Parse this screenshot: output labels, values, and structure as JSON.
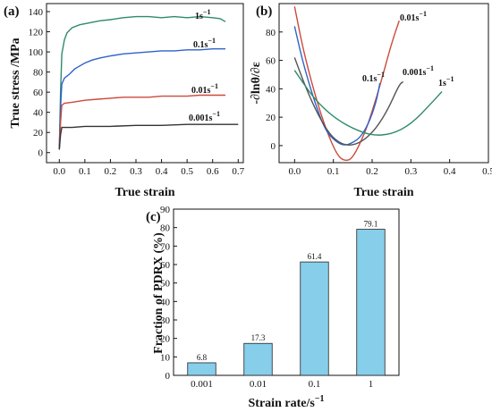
{
  "chart_data": [
    {
      "panel": "(a)",
      "type": "line",
      "xlabel": "True strain",
      "ylabel": "True stress /MPa",
      "xlim": [
        -0.05,
        0.72
      ],
      "ylim": [
        -10,
        148
      ],
      "xticks": [
        "0.0",
        "0.1",
        "0.2",
        "0.3",
        "0.4",
        "0.5",
        "0.6",
        "0.7"
      ],
      "yticks": [
        "0",
        "20",
        "40",
        "60",
        "80",
        "100",
        "120",
        "140"
      ],
      "grid": false,
      "series": [
        {
          "name": "1s",
          "color": "#2e8b6a",
          "x": [
            0,
            0.005,
            0.01,
            0.02,
            0.03,
            0.05,
            0.08,
            0.12,
            0.16,
            0.2,
            0.25,
            0.3,
            0.35,
            0.4,
            0.45,
            0.5,
            0.55,
            0.6,
            0.63,
            0.65
          ],
          "y": [
            5,
            60,
            98,
            112,
            119,
            124,
            127,
            129,
            131,
            132,
            134,
            135,
            135,
            134,
            135,
            134,
            135,
            134,
            133,
            130
          ]
        },
        {
          "name": "0.1s",
          "color": "#2f62c8",
          "x": [
            0,
            0.005,
            0.01,
            0.02,
            0.04,
            0.06,
            0.08,
            0.1,
            0.13,
            0.16,
            0.2,
            0.25,
            0.3,
            0.35,
            0.4,
            0.45,
            0.5,
            0.55,
            0.6,
            0.65
          ],
          "y": [
            5,
            45,
            68,
            74,
            78,
            83,
            86,
            89,
            92,
            94,
            96,
            98,
            99,
            100,
            101,
            101,
            102,
            102,
            103,
            103
          ]
        },
        {
          "name": "0.01s",
          "color": "#cc4a3a",
          "x": [
            0,
            0.005,
            0.01,
            0.02,
            0.05,
            0.1,
            0.15,
            0.2,
            0.25,
            0.3,
            0.35,
            0.4,
            0.45,
            0.5,
            0.55,
            0.6,
            0.65
          ],
          "y": [
            3,
            30,
            47,
            49,
            50,
            52,
            53,
            54,
            55,
            55,
            55,
            56,
            56,
            56,
            57,
            57,
            57
          ]
        },
        {
          "name": "0.001s",
          "color": "#333333",
          "x": [
            0,
            0.005,
            0.01,
            0.05,
            0.1,
            0.2,
            0.3,
            0.4,
            0.5,
            0.6,
            0.7
          ],
          "y": [
            3,
            18,
            25,
            25,
            26,
            26,
            27,
            27,
            28,
            28,
            28
          ]
        }
      ]
    },
    {
      "panel": "(b)",
      "type": "line",
      "xlabel": "True strain",
      "ylabel": "-∂lnθ/∂ε",
      "xlim": [
        -0.04,
        0.5
      ],
      "ylim": [
        -12,
        100
      ],
      "xticks": [
        "0.0",
        "0.1",
        "0.2",
        "0.3",
        "0.4",
        "0.5"
      ],
      "yticks": [
        "0",
        "20",
        "40",
        "60",
        "80"
      ],
      "grid": false,
      "series": [
        {
          "name": "0.01s",
          "color": "#cc4a3a",
          "x": [
            0.0,
            0.02,
            0.05,
            0.08,
            0.11,
            0.13,
            0.15,
            0.18,
            0.2,
            0.22,
            0.25,
            0.27
          ],
          "y": [
            98,
            70,
            38,
            12,
            -7,
            -11,
            -9,
            8,
            24,
            42,
            72,
            88
          ]
        },
        {
          "name": "0.1s",
          "color": "#2f62c8",
          "x": [
            0.0,
            0.02,
            0.05,
            0.08,
            0.11,
            0.13,
            0.15,
            0.17,
            0.19,
            0.21,
            0.22
          ],
          "y": [
            84,
            60,
            32,
            10,
            2,
            0,
            2,
            6,
            15,
            30,
            44
          ]
        },
        {
          "name": "0.001s",
          "color": "#555555",
          "x": [
            0.0,
            0.03,
            0.06,
            0.09,
            0.12,
            0.15,
            0.18,
            0.21,
            0.24,
            0.27,
            0.28
          ],
          "y": [
            62,
            40,
            22,
            8,
            1,
            0,
            4,
            12,
            25,
            43,
            45
          ]
        },
        {
          "name": "1s",
          "color": "#2e8b6a",
          "x": [
            0.0,
            0.05,
            0.1,
            0.15,
            0.2,
            0.25,
            0.3,
            0.35,
            0.38
          ],
          "y": [
            53,
            33,
            20,
            12,
            7,
            8,
            15,
            29,
            38
          ]
        }
      ]
    },
    {
      "panel": "(c)",
      "type": "bar",
      "xlabel": "Strain rate/s",
      "ylabel": "Fraction of PDRX (%)",
      "ylim": [
        0,
        90
      ],
      "categories": [
        "0.001",
        "0.01",
        "0.1",
        "1"
      ],
      "values": [
        6.8,
        17.3,
        61.4,
        79.1
      ],
      "value_labels": [
        "6.8",
        "17.3",
        "61.4",
        "79.1"
      ],
      "yticks": [
        "0",
        "10",
        "20",
        "30",
        "40",
        "50",
        "60",
        "70",
        "80",
        "90"
      ],
      "bar_color": "#87ceeb",
      "grid": false
    }
  ],
  "annotations_a": [
    {
      "base": "1s",
      "sup": "−1"
    },
    {
      "base": "0.1s",
      "sup": "−1"
    },
    {
      "base": "0.01s",
      "sup": "−1"
    },
    {
      "base": "0.001s",
      "sup": "−1"
    }
  ],
  "annotations_b": [
    {
      "base": "0.01s",
      "sup": "−1"
    },
    {
      "base": "0.1s",
      "sup": "−1"
    },
    {
      "base": "0.001s",
      "sup": "−1"
    },
    {
      "base": "1s",
      "sup": "−1"
    }
  ],
  "xsup_c": "−1"
}
